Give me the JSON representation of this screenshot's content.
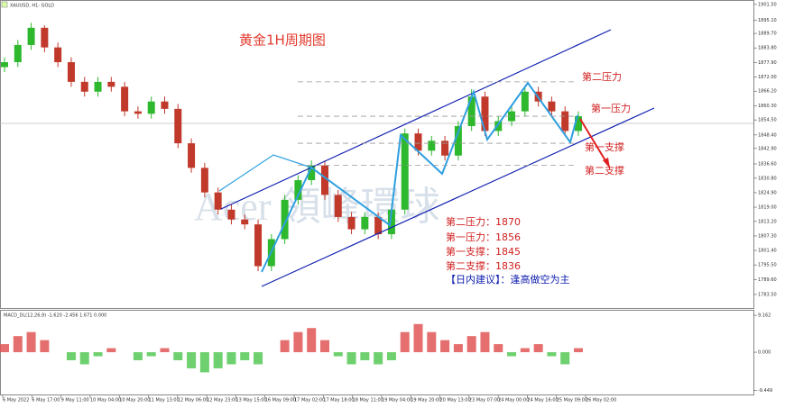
{
  "chart_data": [
    {
      "type": "candlestick",
      "symbol": "XAUUSD, H1: GOLD",
      "title": "黄金1H周期图",
      "watermark": "Acer 領峰環球",
      "up_color": "#2eb82e",
      "down_color": "#c0392b",
      "open": [
        1876,
        1878,
        1885,
        1892,
        1884,
        1878,
        1870,
        1866,
        1870,
        1868,
        1858,
        1857,
        1862,
        1859,
        1845,
        1835,
        1825,
        1818,
        1814,
        1812,
        1795,
        1806,
        1822,
        1830,
        1836,
        1824,
        1815,
        1810,
        1815,
        1808,
        1818,
        1849,
        1842,
        1846,
        1840,
        1852,
        1864,
        1850,
        1854,
        1858,
        1866,
        1862,
        1858,
        1850
      ],
      "high": [
        1880,
        1887,
        1894,
        1893,
        1886,
        1880,
        1872,
        1872,
        1872,
        1870,
        1860,
        1864,
        1864,
        1861,
        1847,
        1837,
        1827,
        1820,
        1816,
        1814,
        1808,
        1824,
        1832,
        1838,
        1838,
        1826,
        1817,
        1817,
        1817,
        1820,
        1851,
        1851,
        1848,
        1848,
        1854,
        1867,
        1866,
        1856,
        1860,
        1868,
        1868,
        1864,
        1860,
        1858
      ],
      "low": [
        1874,
        1876,
        1883,
        1882,
        1876,
        1868,
        1864,
        1864,
        1866,
        1856,
        1855,
        1855,
        1857,
        1843,
        1833,
        1823,
        1816,
        1812,
        1810,
        1793,
        1793,
        1804,
        1820,
        1828,
        1822,
        1813,
        1808,
        1808,
        1806,
        1806,
        1816,
        1840,
        1840,
        1838,
        1838,
        1850,
        1848,
        1848,
        1852,
        1856,
        1860,
        1856,
        1848,
        1848
      ],
      "close": [
        1878,
        1885,
        1892,
        1884,
        1878,
        1870,
        1866,
        1870,
        1868,
        1858,
        1857,
        1862,
        1859,
        1845,
        1835,
        1825,
        1818,
        1814,
        1812,
        1795,
        1806,
        1822,
        1830,
        1836,
        1824,
        1815,
        1810,
        1815,
        1808,
        1818,
        1849,
        1842,
        1846,
        1840,
        1852,
        1864,
        1850,
        1854,
        1858,
        1866,
        1862,
        1858,
        1850,
        1856
      ],
      "ylim": [
        1777.6,
        1903.3
      ],
      "yticks": [
        {
          "value": 1901.5,
          "label": "1901.50"
        },
        {
          "value": 1895.1,
          "label": "1895.10"
        },
        {
          "value": 1889.7,
          "label": "1889.70"
        },
        {
          "value": 1883.8,
          "label": "1883.80"
        },
        {
          "value": 1877.9,
          "label": "1877.90"
        },
        {
          "value": 1872,
          "label": "1872.00"
        },
        {
          "value": 1866.2,
          "label": "1866.20"
        },
        {
          "value": 1860.3,
          "label": "1860.30"
        },
        {
          "value": 1854.5,
          "label": "1854.50"
        },
        {
          "value": 1848.4,
          "label": "1848.40"
        },
        {
          "value": 1842.9,
          "label": "1842.90"
        },
        {
          "value": 1836.6,
          "label": "1836.60"
        },
        {
          "value": 1830.8,
          "label": "1830.80"
        },
        {
          "value": 1824.9,
          "label": "1824.90"
        },
        {
          "value": 1819,
          "label": "1819.00"
        },
        {
          "value": 1813.2,
          "label": "1813.20"
        },
        {
          "value": 1807.3,
          "label": "1807.30"
        },
        {
          "value": 1801.4,
          "label": "1801.40"
        },
        {
          "value": 1795.5,
          "label": "1795.50"
        },
        {
          "value": 1789.6,
          "label": "1789.60"
        },
        {
          "value": 1783.5,
          "label": "1783.50"
        }
      ],
      "levels": [
        {
          "name": "第二压力",
          "label": "第二压力：1870",
          "value": 1870
        },
        {
          "name": "第一压力",
          "label": "第一压力：1856",
          "value": 1856
        },
        {
          "name": "第一支撑",
          "label": "第一支撑：1845",
          "value": 1845
        },
        {
          "name": "第二支撑",
          "label": "第二支撑：1836",
          "value": 1836
        }
      ],
      "advice": "【日内建议】：逢高做空为主",
      "time_labels": [
        "6 May 2022",
        "6 May 17:00",
        "9 May 11:00",
        "10 May 04:00",
        "10 May 20:00",
        "11 May 13:00",
        "12 May 06:00",
        "12 May 23:00",
        "13 May 15:00",
        "16 May 09:00",
        "17 May 02:00",
        "17 May 18:00",
        "18 May 11:00",
        "19 May 04:00",
        "19 May 20:00",
        "20 May 13:00",
        "23 May 07:00",
        "24 May 00:00",
        "24 May 16:00",
        "25 May 09:00",
        "26 May 02:00"
      ]
    },
    {
      "type": "histogram",
      "title": "MACD_DL(12,26,9) -1.620 -2.456 1.671 0.000",
      "pos_color": "#e05555",
      "neg_color": "#55c855",
      "values": [
        2,
        4,
        5,
        3,
        0,
        -2,
        -3,
        -1,
        1,
        0,
        -2,
        -1,
        1,
        -2,
        -4,
        -5,
        -4,
        -3,
        -2,
        -3,
        0,
        3,
        5,
        6,
        3,
        -1,
        -3,
        -2,
        -3,
        -2,
        5,
        7,
        5,
        3,
        2,
        4,
        5,
        2,
        -1,
        1,
        2,
        -1,
        -3,
        1
      ],
      "ylim": [
        -10.5,
        10.3
      ],
      "yticks": [
        {
          "value": 9.162,
          "label": "9.162"
        },
        {
          "value": 0,
          "label": "0.000"
        },
        {
          "value": -9.449,
          "label": "-9.449"
        }
      ]
    }
  ]
}
